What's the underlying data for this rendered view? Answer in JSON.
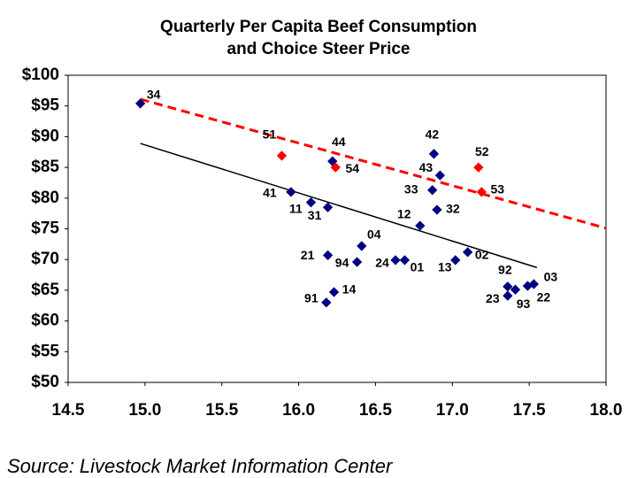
{
  "chart_data": {
    "type": "scatter",
    "title": [
      "Quarterly Per Capita Beef Consumption",
      "and Choice Steer Price"
    ],
    "source": "Source: Livestock Market Information Center",
    "xlim": [
      14.5,
      18.0
    ],
    "xticks": [
      {
        "value": 14.5,
        "label": "14.5"
      },
      {
        "value": 15,
        "label": "15.0"
      },
      {
        "value": 15.5,
        "label": "15.5"
      },
      {
        "value": 16,
        "label": "16.0"
      },
      {
        "value": 16.5,
        "label": "16.5"
      },
      {
        "value": 17,
        "label": "17.0"
      },
      {
        "value": 17.5,
        "label": "17.5"
      },
      {
        "value": 18,
        "label": "18.0"
      }
    ],
    "ylim": [
      50,
      100
    ],
    "yticks": [
      {
        "value": 50,
        "label": "$50"
      },
      {
        "value": 55,
        "label": "$55"
      },
      {
        "value": 60,
        "label": "$60"
      },
      {
        "value": 65,
        "label": "$65"
      },
      {
        "value": 70,
        "label": "$70"
      },
      {
        "value": 75,
        "label": "$75"
      },
      {
        "value": 80,
        "label": "$80"
      },
      {
        "value": 85,
        "label": "$85"
      },
      {
        "value": 90,
        "label": "$90"
      },
      {
        "value": 95,
        "label": "$95"
      },
      {
        "value": 100,
        "label": "$100"
      }
    ],
    "series": [
      {
        "color": "#000080",
        "labels": [
          "34",
          "44",
          "42",
          "43",
          "33",
          "41",
          "11",
          "31",
          "32",
          "12",
          "04",
          "21",
          "94",
          "24",
          "01",
          "13",
          "02",
          "92",
          "23",
          "93",
          "22",
          "03",
          "14",
          "91"
        ],
        "x": [
          14.97,
          16.22,
          16.88,
          16.92,
          16.87,
          15.95,
          16.08,
          16.19,
          16.9,
          16.79,
          16.41,
          16.19,
          16.38,
          16.63,
          16.69,
          17.02,
          17.1,
          17.36,
          17.36,
          17.41,
          17.49,
          17.53,
          16.23,
          16.18
        ],
        "values": [
          95.4,
          86.0,
          87.2,
          83.7,
          81.3,
          81.0,
          79.3,
          78.5,
          78.1,
          75.5,
          72.2,
          70.7,
          69.6,
          69.9,
          69.9,
          69.9,
          71.2,
          65.6,
          64.1,
          65.1,
          65.7,
          66.0,
          64.7,
          63.0
        ]
      },
      {
        "color": "#ff0000",
        "labels": [
          "51",
          "54",
          "52",
          "53"
        ],
        "x": [
          15.89,
          16.24,
          17.17,
          17.19
        ],
        "values": [
          86.9,
          85.0,
          85.0,
          81.0
        ]
      }
    ],
    "trend_lines": [
      {
        "color": "#ff0000",
        "dashed": true,
        "x": [
          14.97,
          18.0
        ],
        "values": [
          96.1,
          75.1
        ]
      },
      {
        "color": "#000000",
        "dashed": false,
        "x": [
          14.97,
          17.55
        ],
        "values": [
          88.9,
          68.7
        ]
      }
    ]
  }
}
